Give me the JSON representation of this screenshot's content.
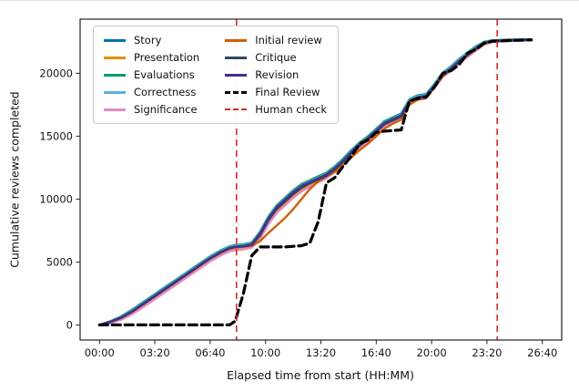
{
  "chart_data": {
    "type": "line",
    "title": "",
    "xlabel": "Elapsed time from start (HH:MM)",
    "ylabel": "Cumulative reviews completed",
    "grid": false,
    "legend_position": "upper-left",
    "x_range": [
      -70,
      1670
    ],
    "y_range": [
      -1200,
      24300
    ],
    "x_ticks": [
      {
        "value": 0,
        "label": "00:00"
      },
      {
        "value": 200,
        "label": "03:20"
      },
      {
        "value": 400,
        "label": "06:40"
      },
      {
        "value": 600,
        "label": "10:00"
      },
      {
        "value": 800,
        "label": "13:20"
      },
      {
        "value": 1000,
        "label": "16:40"
      },
      {
        "value": 1200,
        "label": "20:00"
      },
      {
        "value": 1400,
        "label": "23:20"
      },
      {
        "value": 1600,
        "label": "26:40"
      }
    ],
    "y_ticks": [
      0,
      5000,
      10000,
      15000,
      20000
    ],
    "x_minutes": [
      0,
      40,
      80,
      120,
      160,
      200,
      240,
      280,
      320,
      360,
      400,
      440,
      470,
      490,
      520,
      550,
      580,
      610,
      640,
      670,
      700,
      730,
      760,
      790,
      820,
      850,
      880,
      910,
      940,
      970,
      1000,
      1030,
      1060,
      1090,
      1120,
      1150,
      1180,
      1210,
      1240,
      1270,
      1300,
      1330,
      1360,
      1390,
      1420,
      1480,
      1560
    ],
    "series": [
      {
        "id": "story",
        "name": "Story",
        "color": "#0173b2",
        "width": 2.4,
        "dash": false,
        "values": [
          0,
          250,
          600,
          1100,
          1700,
          2300,
          2900,
          3500,
          4100,
          4700,
          5300,
          5800,
          6100,
          6200,
          6250,
          6400,
          7200,
          8400,
          9300,
          9900,
          10500,
          11000,
          11300,
          11600,
          11900,
          12400,
          13000,
          13700,
          14300,
          14800,
          15400,
          16000,
          16300,
          16600,
          17800,
          18100,
          18200,
          19000,
          19900,
          20400,
          21000,
          21500,
          22000,
          22400,
          22550,
          22600,
          22650
        ]
      },
      {
        "id": "presentation",
        "name": "Presentation",
        "color": "#de8f05",
        "width": 2.4,
        "dash": false,
        "values": [
          0,
          200,
          520,
          1000,
          1580,
          2180,
          2780,
          3380,
          3980,
          4580,
          5180,
          5700,
          6000,
          6120,
          6180,
          6300,
          7000,
          8200,
          9100,
          9700,
          10300,
          10800,
          11150,
          11450,
          11750,
          12250,
          12850,
          13550,
          14150,
          14650,
          15250,
          15850,
          16150,
          16450,
          17650,
          17980,
          18080,
          18880,
          19780,
          20280,
          20880,
          21380,
          21880,
          22320,
          22500,
          22580,
          22630
        ]
      },
      {
        "id": "evaluations",
        "name": "Evaluations",
        "color": "#029e73",
        "width": 2.4,
        "dash": false,
        "values": [
          0,
          300,
          700,
          1250,
          1850,
          2450,
          3050,
          3650,
          4250,
          4850,
          5450,
          5950,
          6250,
          6350,
          6400,
          6550,
          7400,
          8600,
          9500,
          10100,
          10700,
          11200,
          11500,
          11800,
          12100,
          12600,
          13200,
          13900,
          14500,
          15000,
          15600,
          16200,
          16500,
          16800,
          17950,
          18250,
          18350,
          19150,
          20050,
          20550,
          21150,
          21650,
          22150,
          22500,
          22620,
          22670,
          22700
        ]
      },
      {
        "id": "correctness",
        "name": "Correctness",
        "color": "#56b4e9",
        "width": 2.4,
        "dash": false,
        "values": [
          0,
          280,
          650,
          1180,
          1780,
          2380,
          2980,
          3580,
          4180,
          4780,
          5380,
          5880,
          6180,
          6280,
          6320,
          6480,
          7300,
          8500,
          9400,
          10000,
          10600,
          11100,
          11400,
          11700,
          12000,
          12500,
          13100,
          13800,
          14400,
          14900,
          15500,
          16100,
          16400,
          16700,
          17880,
          18180,
          18280,
          19080,
          19980,
          20480,
          21080,
          21580,
          22080,
          22450,
          22580,
          22630,
          22680
        ]
      },
      {
        "id": "significance",
        "name": "Significance",
        "color": "#e78ac3",
        "width": 2.4,
        "dash": false,
        "values": [
          0,
          150,
          420,
          880,
          1450,
          2050,
          2650,
          3250,
          3850,
          4450,
          5050,
          5550,
          5850,
          5950,
          6000,
          6150,
          6800,
          8000,
          8900,
          9500,
          10100,
          10600,
          11000,
          11350,
          11650,
          12150,
          12750,
          13450,
          14050,
          14550,
          15150,
          15750,
          16050,
          16350,
          17550,
          17900,
          18000,
          18800,
          19700,
          20200,
          20800,
          21300,
          21800,
          22280,
          22480,
          22570,
          22620
        ]
      },
      {
        "id": "initial-review",
        "name": "Initial review",
        "color": "#d55e00",
        "width": 2.4,
        "dash": false,
        "values": [
          0,
          230,
          560,
          1060,
          1660,
          2260,
          2860,
          3460,
          4060,
          4660,
          5260,
          5760,
          6060,
          6180,
          6220,
          6280,
          6650,
          7300,
          7900,
          8500,
          9200,
          10000,
          10800,
          11400,
          11800,
          12150,
          12700,
          13300,
          13900,
          14400,
          15000,
          15600,
          16000,
          16300,
          17500,
          17900,
          18050,
          18850,
          19750,
          20300,
          20900,
          21400,
          21900,
          22320,
          22520,
          22600,
          22650
        ]
      },
      {
        "id": "critique",
        "name": "Critique",
        "color": "#34495e",
        "width": 2.4,
        "dash": false,
        "values": [
          0,
          240,
          580,
          1080,
          1680,
          2280,
          2880,
          3480,
          4080,
          4680,
          5280,
          5780,
          6080,
          6180,
          6230,
          6350,
          7100,
          8300,
          9200,
          9800,
          10400,
          10900,
          11250,
          11550,
          11850,
          12350,
          12950,
          13650,
          14250,
          14750,
          15350,
          15950,
          16250,
          16550,
          17750,
          18050,
          18150,
          18950,
          19850,
          20350,
          20950,
          21450,
          21950,
          22400,
          22550,
          22620,
          22670
        ]
      },
      {
        "id": "revision",
        "name": "Revision",
        "color": "#432f87",
        "width": 2.4,
        "dash": false,
        "values": [
          0,
          260,
          620,
          1120,
          1720,
          2320,
          2920,
          3520,
          4120,
          4720,
          5320,
          5820,
          6120,
          6220,
          6260,
          6420,
          7250,
          8450,
          9350,
          9950,
          10550,
          11050,
          11350,
          11650,
          11950,
          12450,
          13050,
          13750,
          14350,
          14850,
          15450,
          16050,
          16350,
          16650,
          17800,
          18100,
          18200,
          19000,
          19900,
          20400,
          21000,
          21500,
          22000,
          22420,
          22560,
          22630,
          22680
        ]
      },
      {
        "id": "final-review",
        "name": "Final Review",
        "color": "#000000",
        "width": 3.2,
        "dash": true,
        "values": [
          0,
          0,
          0,
          0,
          0,
          0,
          0,
          0,
          0,
          0,
          0,
          0,
          0,
          300,
          2500,
          5500,
          6200,
          6200,
          6200,
          6200,
          6250,
          6300,
          6500,
          8200,
          11300,
          11700,
          12600,
          13400,
          14400,
          14700,
          15300,
          15400,
          15450,
          15500,
          17800,
          18000,
          18100,
          18900,
          20000,
          20200,
          20700,
          21600,
          21900,
          22400,
          22550,
          22600,
          22650
        ]
      }
    ],
    "vlines": {
      "name": "Human check",
      "color": "#d62728",
      "positions": [
        495,
        1437
      ],
      "dash": true
    },
    "legend_entries": [
      {
        "id": "story",
        "label": "Story",
        "color": "#0173b2",
        "style": "solid"
      },
      {
        "id": "presentation",
        "label": "Presentation",
        "color": "#de8f05",
        "style": "solid"
      },
      {
        "id": "evaluations",
        "label": "Evaluations",
        "color": "#029e73",
        "style": "solid"
      },
      {
        "id": "correctness",
        "label": "Correctness",
        "color": "#56b4e9",
        "style": "solid"
      },
      {
        "id": "significance",
        "label": "Significance",
        "color": "#e78ac3",
        "style": "solid"
      },
      {
        "id": "initial-review",
        "label": "Initial review",
        "color": "#d55e00",
        "style": "solid"
      },
      {
        "id": "critique",
        "label": "Critique",
        "color": "#34495e",
        "style": "solid"
      },
      {
        "id": "revision",
        "label": "Revision",
        "color": "#432f87",
        "style": "solid"
      },
      {
        "id": "final-review",
        "label": "Final Review",
        "color": "#000000",
        "style": "dashed-thick"
      },
      {
        "id": "human-check",
        "label": "Human check",
        "color": "#d62728",
        "style": "dashed"
      }
    ]
  }
}
